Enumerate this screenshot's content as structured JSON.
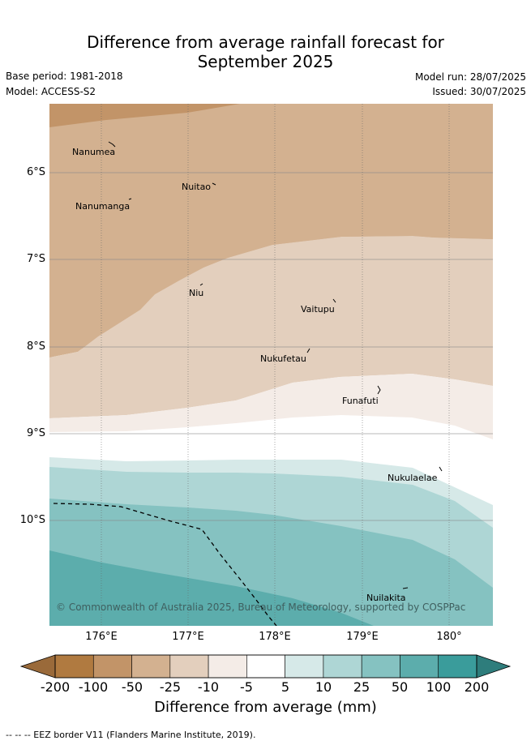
{
  "title_line1": "Difference from average rainfall forecast for",
  "title_line2": "September 2025",
  "base_period": "Base period: 1981-2018",
  "model": "Model: ACCESS-S2",
  "model_run": "Model run: 28/07/2025",
  "issued": "Issued: 30/07/2025",
  "islands": [
    "Nanumea",
    "Nuitao",
    "Nanumanga",
    "Niu",
    "Vaitupu",
    "Nukufetau",
    "Funafuti",
    "Nukulaelae",
    "Nuilakita"
  ],
  "lat_ticks": [
    "6°S",
    "7°S",
    "8°S",
    "9°S",
    "10°S"
  ],
  "lon_ticks": [
    "176°E",
    "177°E",
    "178°E",
    "179°E",
    "180°"
  ],
  "copyright": "© Commonwealth of Australia 2025, Bureau of Meteorology, supported by COSPPac",
  "colorbar": {
    "ticks": [
      "-200",
      "-100",
      "-50",
      "-25",
      "-10",
      "-5",
      "5",
      "10",
      "25",
      "50",
      "100",
      "200"
    ],
    "colors": [
      "#9a6a3a",
      "#b07a40",
      "#c29468",
      "#d3b190",
      "#e3cfbd",
      "#f4ece7",
      "#ffffff",
      "#d6e9e8",
      "#aed6d5",
      "#85c2c1",
      "#5cadac",
      "#3a9c9b",
      "#2e7d7c"
    ],
    "label": "Difference from average (mm)"
  },
  "legend_eez": "-- -- -- EEZ border V11 (Flanders Marine Institute, 2019)."
}
